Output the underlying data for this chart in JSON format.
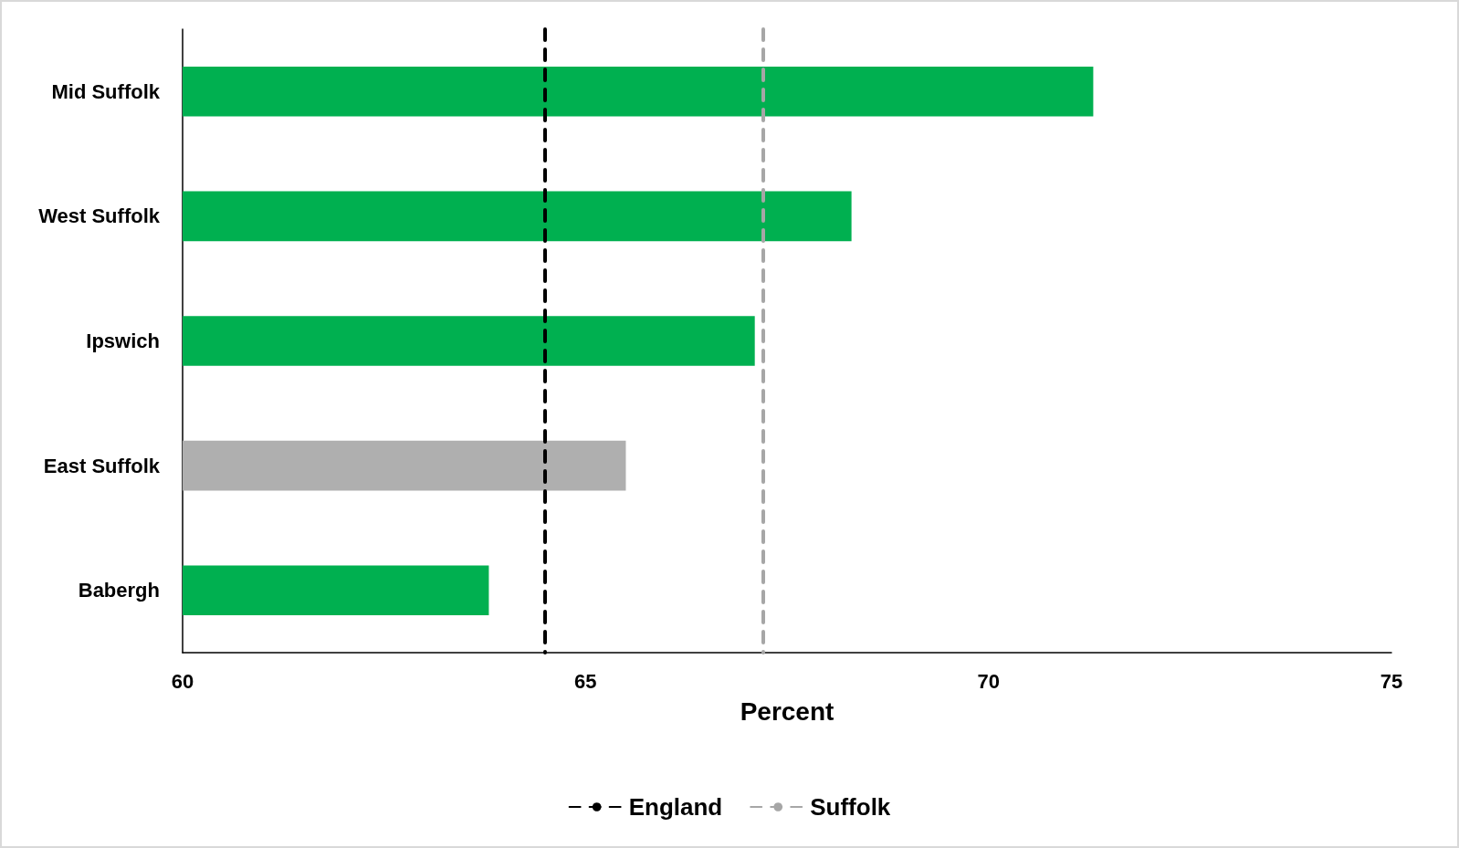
{
  "chart_data": {
    "type": "bar",
    "orientation": "horizontal",
    "xlabel": "Percent",
    "categories": [
      "Mid Suffolk",
      "West Suffolk",
      "Ipswich",
      "East Suffolk",
      "Babergh"
    ],
    "values": [
      71.3,
      68.3,
      67.1,
      65.5,
      63.8
    ],
    "colors": [
      "#00b050",
      "#00b050",
      "#00b050",
      "#afafaf",
      "#00b050"
    ],
    "xlim": [
      60,
      75
    ],
    "xticks": [
      60,
      65,
      70,
      75
    ],
    "grid": false,
    "legend": "bottom",
    "ref_lines": [
      {
        "axis": "x",
        "value": 64.5,
        "label": "England",
        "color": "#000000",
        "line_style": "dashed"
      },
      {
        "axis": "x",
        "value": 67.2,
        "label": "Suffolk",
        "color": "#a6a6a6",
        "line_style": "dashed"
      }
    ]
  }
}
